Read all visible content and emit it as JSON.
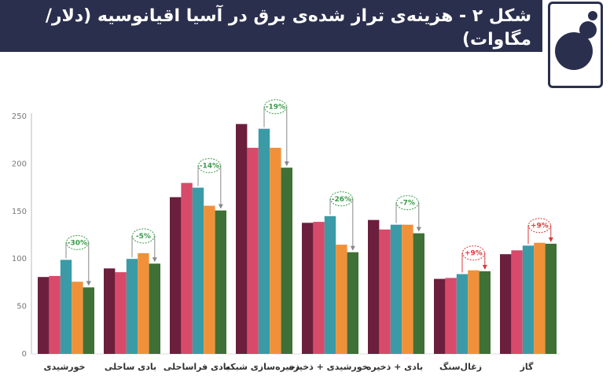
{
  "header": {
    "title": "شکل ۲ - هزینه‌ی تراز شده‌ی برق در آسیا اقیانوسیه (دلار/مگاوات)"
  },
  "chart_data": {
    "type": "bar",
    "title": "شکل ۲ - هزینه‌ی تراز شده‌ی برق در آسیا اقیانوسیه (دلار/مگاوات)",
    "xlabel": "",
    "ylabel": "",
    "ylim": [
      0,
      250
    ],
    "yticks": [
      0,
      50,
      100,
      150,
      200,
      250
    ],
    "grid": false,
    "categories": [
      "خورشیدی",
      "بادی ساحلی",
      "بادی فراساحلی",
      "ذخیره‌سازی شبکه",
      "خورشیدی + ذخیره",
      "بادی + ذخیره",
      "زغال‌سنگ",
      "گاز"
    ],
    "series": [
      {
        "values": [
          81,
          90,
          165,
          242,
          138,
          141,
          79,
          105
        ]
      },
      {
        "values": [
          82,
          86,
          180,
          217,
          139,
          131,
          80,
          109
        ]
      },
      {
        "values": [
          99,
          100,
          175,
          237,
          145,
          136,
          84,
          114
        ]
      },
      {
        "values": [
          76,
          106,
          156,
          217,
          115,
          136,
          88,
          117
        ]
      },
      {
        "values": [
          70,
          95,
          151,
          196,
          107,
          127,
          87,
          116
        ]
      }
    ],
    "series_colors": [
      "#6b1f3d",
      "#d84a6a",
      "#3a9ba6",
      "#f0913a",
      "#3f7035"
    ],
    "annotations": [
      "-30%",
      "-5%",
      "-14%",
      "-19%",
      "-26%",
      "-7%",
      "+9%",
      "+9%"
    ],
    "annotation_colors": {
      "decrease": "#3a9a4a",
      "increase": "#d93a3a"
    }
  }
}
